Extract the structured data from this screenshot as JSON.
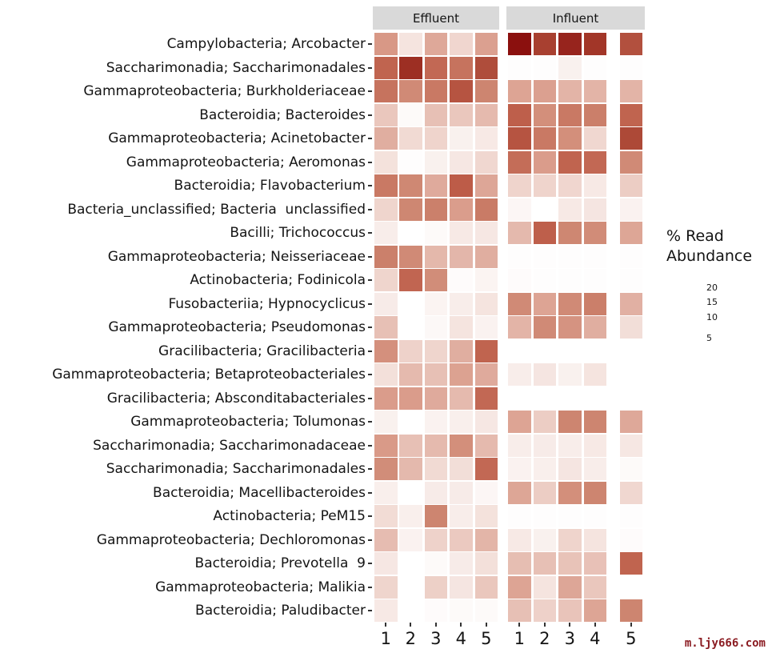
{
  "figure": {
    "watermark": "m.ljy666.com",
    "watermark_color": "#8b1c22",
    "strip_background": "#d9d9d9",
    "text_color": "#141414"
  },
  "facets": [
    {
      "label": "Effluent"
    },
    {
      "label": "Influent"
    }
  ],
  "legend": {
    "title_line1": "% Read",
    "title_line2": "Abundance",
    "ticks": [
      {
        "label": "20",
        "pos": 0.15
      },
      {
        "label": "15",
        "pos": 0.3
      },
      {
        "label": "10",
        "pos": 0.455
      },
      {
        "label": "5",
        "pos": 0.67
      }
    ]
  },
  "chart_data": {
    "type": "heatmap",
    "title": "",
    "unit": "% read abundance",
    "value_range": [
      0,
      24
    ],
    "facet_labels": [
      "Effluent",
      "Influent"
    ],
    "x_categories": [
      "1",
      "2",
      "3",
      "4",
      "5"
    ],
    "colorscale": [
      [
        0,
        "#ffffff"
      ],
      [
        1,
        "#f8edea"
      ],
      [
        2,
        "#f1dad3"
      ],
      [
        4,
        "#e7c0b5"
      ],
      [
        6,
        "#dea899"
      ],
      [
        8,
        "#d89886"
      ],
      [
        10,
        "#cd8570"
      ],
      [
        12,
        "#c46d58"
      ],
      [
        14,
        "#bc5a46"
      ],
      [
        16,
        "#af4d3b"
      ],
      [
        18,
        "#a63c2c"
      ],
      [
        20,
        "#a03426"
      ],
      [
        22,
        "#941f1a"
      ],
      [
        24,
        "#8b100e"
      ]
    ],
    "rows": [
      {
        "label": "Campylobacteria; Arcobacter",
        "effluent": [
          8,
          1.5,
          6,
          2.3,
          7
        ],
        "influent": [
          24,
          17.5,
          21.5,
          19.5,
          15.5
        ]
      },
      {
        "label": "Saccharimonadia; Saccharimonadales",
        "effluent": [
          13,
          20.5,
          12.5,
          11.5,
          16
        ],
        "influent": [
          0.1,
          0.1,
          0.8,
          0.1,
          0.1
        ]
      },
      {
        "label": "Gammaproteobacteria; Burkholderiaceae",
        "effluent": [
          11.5,
          9.5,
          11,
          15,
          10
        ],
        "influent": [
          6.5,
          7,
          5,
          5,
          5
        ]
      },
      {
        "label": "Bacteroidia; Bacteroides",
        "effluent": [
          3.5,
          0.3,
          4,
          3.5,
          4.5
        ],
        "influent": [
          13.5,
          9,
          11,
          10.5,
          13
        ]
      },
      {
        "label": "Gammaproteobacteria; Acinetobacter",
        "effluent": [
          5.5,
          2,
          2.5,
          0.8,
          1.2
        ],
        "influent": [
          15,
          11,
          9,
          2.2,
          16.5
        ]
      },
      {
        "label": "Gammaproteobacteria; Aeromonas",
        "effluent": [
          1.6,
          0.1,
          0.8,
          1.3,
          2.2
        ],
        "influent": [
          12,
          7.5,
          13,
          12.5,
          9.5
        ]
      },
      {
        "label": "Bacteroidia; Flavobacterium",
        "effluent": [
          11,
          9.7,
          5.8,
          13.8,
          6.2
        ],
        "influent": [
          2.5,
          2.5,
          2.3,
          1.2,
          3
        ]
      },
      {
        "label": "Bacteria_unclassified; Bacteria  unclassified",
        "effluent": [
          2.4,
          9.8,
          10.4,
          7.4,
          10.8
        ],
        "influent": [
          0.5,
          0,
          1.2,
          1.4,
          0.7
        ]
      },
      {
        "label": "Bacilli; Trichococcus",
        "effluent": [
          1,
          0,
          0.3,
          1.2,
          1.3
        ],
        "influent": [
          4.6,
          13.5,
          9.8,
          9.3,
          6.3
        ]
      },
      {
        "label": "Gammaproteobacteria; Neisseriaceae",
        "effluent": [
          10.4,
          9.5,
          4.7,
          4.8,
          5.5
        ],
        "influent": [
          0.1,
          0.1,
          0.1,
          0.1,
          0.1
        ]
      },
      {
        "label": "Actinobacteria; Fodinicola",
        "effluent": [
          2.4,
          12.8,
          9.2,
          0.2,
          0.6
        ],
        "influent": [
          0.2,
          0.1,
          0.1,
          0.1,
          0.1
        ]
      },
      {
        "label": "Fusobacteriia; Hypnocyclicus",
        "effluent": [
          1.1,
          0,
          0.6,
          1,
          1.5
        ],
        "influent": [
          9.5,
          6.5,
          9.5,
          10.5,
          5.3
        ]
      },
      {
        "label": "Gammaproteobacteria; Pseudomonas",
        "effluent": [
          4,
          0,
          0.4,
          1.5,
          0.7
        ],
        "influent": [
          5,
          9.5,
          8.5,
          5.5,
          1.8
        ]
      },
      {
        "label": "Gracilibacteria; Gracilibacteria",
        "effluent": [
          8.8,
          2.6,
          2.4,
          5.5,
          13
        ],
        "influent": [
          0,
          0,
          0,
          0,
          0
        ]
      },
      {
        "label": "Gammaproteobacteria; Betaproteobacteriales",
        "effluent": [
          1.7,
          4.5,
          4,
          6.8,
          5.8
        ],
        "influent": [
          1,
          1.4,
          0.8,
          1.5,
          0
        ]
      },
      {
        "label": "Gracilibacteria; Absconditabacteriales",
        "effluent": [
          7.5,
          7.5,
          5.8,
          4.5,
          12.5
        ],
        "influent": [
          0,
          0,
          0,
          0,
          0
        ]
      },
      {
        "label": "Gammaproteobacteria; Tolumonas",
        "effluent": [
          0.8,
          0,
          0.7,
          0.9,
          1.3
        ],
        "influent": [
          6.5,
          3,
          10,
          10,
          6
        ]
      },
      {
        "label": "Saccharimonadia; Saccharimonadaceae",
        "effluent": [
          7.8,
          4,
          4.5,
          9,
          4.5
        ],
        "influent": [
          1,
          1.1,
          1,
          1.2,
          1.3
        ]
      },
      {
        "label": "Saccharimonadia; Saccharimonadales",
        "effluent": [
          9.2,
          4.6,
          2,
          1.8,
          12.5
        ],
        "influent": [
          0.7,
          0.9,
          1.4,
          1,
          0.3
        ]
      },
      {
        "label": "Bacteroidia; Macellibacteroides",
        "effluent": [
          0.9,
          0,
          1.1,
          1.1,
          0.5
        ],
        "influent": [
          6.3,
          3,
          9,
          10,
          2.2
        ]
      },
      {
        "label": "Actinobacteria; PeM15",
        "effluent": [
          1.9,
          0.9,
          10,
          1,
          1.6
        ],
        "influent": [
          0.1,
          0.1,
          0.1,
          0.1,
          0.1
        ]
      },
      {
        "label": "Gammaproteobacteria; Dechloromonas",
        "effluent": [
          4.3,
          0.7,
          2.6,
          3.3,
          4.9
        ],
        "influent": [
          1.2,
          0.8,
          2.5,
          1.5,
          0.2
        ]
      },
      {
        "label": "Bacteroidia; Prevotella  9",
        "effluent": [
          1.3,
          0,
          0.3,
          1.1,
          1.7
        ],
        "influent": [
          4.2,
          4,
          3.8,
          3.9,
          13
        ]
      },
      {
        "label": "Gammaproteobacteria; Malikia",
        "effluent": [
          2.4,
          0,
          2.8,
          1.4,
          3.5
        ],
        "influent": [
          6.5,
          1.5,
          6.2,
          3.5,
          0
        ]
      },
      {
        "label": "Bacteroidia; Paludibacter",
        "effluent": [
          1.2,
          0,
          0.2,
          0.3,
          0.3
        ],
        "influent": [
          4,
          2.7,
          3.7,
          6.4,
          10
        ]
      }
    ]
  }
}
